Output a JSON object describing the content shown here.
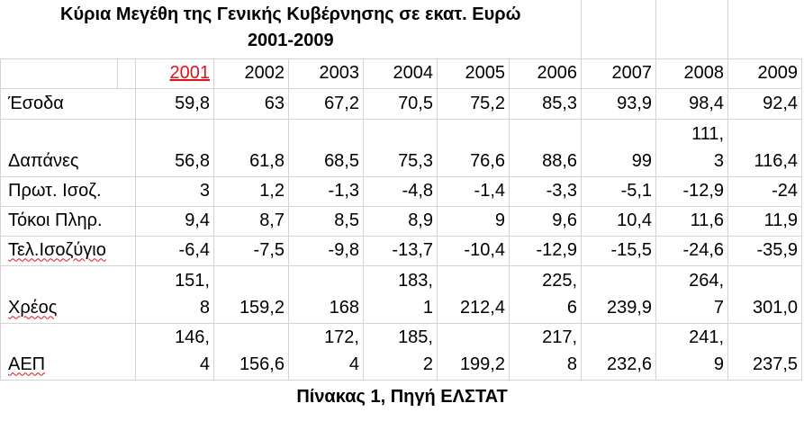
{
  "title_lines": [
    "Κύρια Μεγέθη της Γενικής Κυβέρνησης σε εκατ. Ευρώ",
    "2001-2009"
  ],
  "table": {
    "header": [
      "2001",
      "2002",
      "2003",
      "2004",
      "2005",
      "2006",
      "2007",
      "2008",
      "2009"
    ],
    "rows": [
      {
        "label": "Έσοδα",
        "values": [
          "59,8",
          "63",
          "67,2",
          "70,5",
          "75,2",
          "85,3",
          "93,9",
          "98,4",
          "92,4"
        ]
      },
      {
        "label": "Δαπάνες",
        "values": [
          "56,8",
          "61,8",
          "68,5",
          "75,3",
          "76,6",
          "88,6",
          "99",
          "111,3",
          "116,4"
        ]
      },
      {
        "label": "Πρωτ. Ισοζ.",
        "values": [
          "3",
          "1,2",
          "-1,3",
          "-4,8",
          "-1,4",
          "-3,3",
          "-5,1",
          "-12,9",
          "-24"
        ]
      },
      {
        "label": "Τόκοι Πληρ.",
        "values": [
          "9,4",
          "8,7",
          "8,5",
          "8,9",
          "9",
          "9,6",
          "10,4",
          "11,6",
          "11,9"
        ]
      },
      {
        "label": "Τελ.Ισοζύγιο",
        "values": [
          "-6,4",
          "-7,5",
          "-9,8",
          "-13,7",
          "-10,4",
          "-12,9",
          "-15,5",
          "-24,6",
          "-35,9"
        ]
      },
      {
        "label": "Χρέος",
        "values": [
          "151,8",
          "159,2",
          "168",
          "183,1",
          "212,4",
          "225,6",
          "239,9",
          "264,7",
          "301,0"
        ]
      },
      {
        "label": "ΑΕΠ",
        "values": [
          "146,4",
          "156,6",
          "172,4",
          "185,2",
          "199,2",
          "217,8",
          "232,6",
          "241,9",
          "237,5"
        ]
      }
    ]
  },
  "caption": "Πίνακας 1, Πηγή ΕΛΣΤΑΤ"
}
